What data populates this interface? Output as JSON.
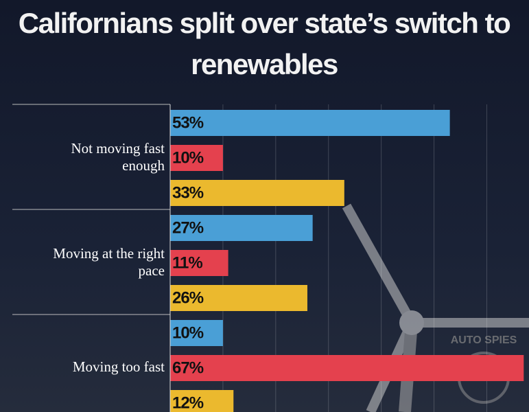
{
  "chart_data": {
    "type": "grouped-hbar",
    "title": "Californians split over state’s switch to renewables",
    "categories": [
      "Not moving fast enough",
      "Moving at the right pace",
      "Moving too fast"
    ],
    "series": [
      {
        "color": "#4a9fd6",
        "values": [
          53,
          27,
          10
        ],
        "value_labels": [
          "53%",
          "27%",
          "10%"
        ]
      },
      {
        "color": "#e4414e",
        "values": [
          10,
          11,
          67
        ],
        "value_labels": [
          "10%",
          "11%",
          "67%"
        ]
      },
      {
        "color": "#ebb92e",
        "values": [
          33,
          26,
          12
        ],
        "value_labels": [
          "33%",
          "26%",
          "12%"
        ]
      }
    ],
    "xlim": [
      0,
      68
    ],
    "xticks": [
      0,
      10,
      20,
      30,
      40,
      50,
      60
    ],
    "grid": true,
    "watermark": "AUTO SPIES"
  }
}
